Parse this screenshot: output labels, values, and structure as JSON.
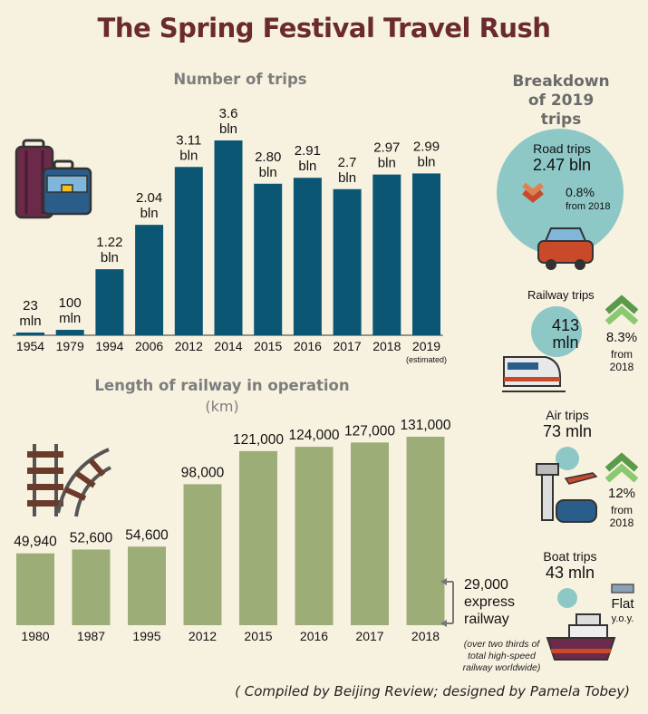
{
  "title": "The Spring Festival Travel Rush",
  "trips_section_title": "Number of trips",
  "rail_section_title": "Length of railway in operation",
  "rail_unit": "(km)",
  "breakdown": {
    "title": "Breakdown of 2019 trips",
    "road": {
      "label": "Road trips",
      "value": "2.47 bln",
      "change": "0.8%",
      "change_note": "from 2018"
    },
    "railway": {
      "label": "Railway trips",
      "value": "413",
      "unit": "mln",
      "change": "8.3%",
      "change_note": "from",
      "change_note2": "2018"
    },
    "air": {
      "label": "Air trips",
      "value": "73 mln",
      "change": "12%",
      "change_note": "from",
      "change_note2": "2018"
    },
    "boat": {
      "label": "Boat trips",
      "value": "43 mln",
      "change": "Flat",
      "change_note": "y.o.y."
    }
  },
  "express": {
    "value": "29,000",
    "line2": "express",
    "line3": "railway",
    "note1": "(over two thirds of",
    "note2": "total high-speed",
    "note3": "railway worldwide)"
  },
  "footer": "( Compiled by Beijing Review; designed by Pamela Tobey)",
  "colors": {
    "trips_bar": "#0b5673",
    "rail_bar": "#9cad78",
    "circle": "#8ec8c6",
    "title": "#6b2a2e",
    "background": "#f7f2e0"
  },
  "chart_data": [
    {
      "type": "bar",
      "title": "Number of trips",
      "categories": [
        "1954",
        "1979",
        "1994",
        "2006",
        "2012",
        "2014",
        "2015",
        "2016",
        "2017",
        "2018",
        "2019"
      ],
      "category_notes": {
        "2019": "(estimated)"
      },
      "values": [
        0.023,
        0.1,
        1.22,
        2.04,
        3.11,
        3.6,
        2.8,
        2.91,
        2.7,
        2.97,
        2.99
      ],
      "unit": "bln",
      "labels": [
        [
          "23",
          "mln"
        ],
        [
          "100",
          "mln"
        ],
        [
          "1.22",
          "bln"
        ],
        [
          "2.04",
          "bln"
        ],
        [
          "3.11",
          "bln"
        ],
        [
          "3.6",
          "bln"
        ],
        [
          "2.80",
          "bln"
        ],
        [
          "2.91",
          "bln"
        ],
        [
          "2.7",
          "bln"
        ],
        [
          "2.97",
          "bln"
        ],
        [
          "2.99",
          "bln"
        ]
      ],
      "ylim": [
        0,
        3.6
      ]
    },
    {
      "type": "bar",
      "title": "Length of railway in operation",
      "ylabel": "(km)",
      "categories": [
        "1980",
        "1987",
        "1995",
        "2012",
        "2015",
        "2016",
        "2017",
        "2018"
      ],
      "values": [
        49940,
        52600,
        54600,
        98000,
        121000,
        124000,
        127000,
        131000
      ],
      "labels": [
        "49,940",
        "52,600",
        "54,600",
        "98,000",
        "121,000",
        "124,000",
        "127,000",
        "131,000"
      ],
      "ylim": [
        0,
        131000
      ]
    }
  ]
}
